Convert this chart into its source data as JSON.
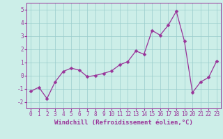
{
  "x": [
    0,
    1,
    2,
    3,
    4,
    5,
    6,
    7,
    8,
    9,
    10,
    11,
    12,
    13,
    14,
    15,
    16,
    17,
    18,
    19,
    20,
    21,
    22,
    23
  ],
  "y": [
    -1.2,
    -0.9,
    -1.75,
    -0.5,
    0.3,
    0.55,
    0.4,
    -0.1,
    0.0,
    0.15,
    0.35,
    0.8,
    1.05,
    1.85,
    1.6,
    3.4,
    3.05,
    3.8,
    4.85,
    2.6,
    -1.3,
    -0.5,
    -0.15,
    1.1
  ],
  "line_color": "#993399",
  "marker_color": "#993399",
  "bg_color": "#cceee8",
  "grid_color": "#99cccc",
  "xlabel": "Windchill (Refroidissement éolien,°C)",
  "xlim": [
    -0.5,
    23.5
  ],
  "ylim": [
    -2.5,
    5.5
  ],
  "yticks": [
    -2,
    -1,
    0,
    1,
    2,
    3,
    4,
    5
  ],
  "xticks": [
    0,
    1,
    2,
    3,
    4,
    5,
    6,
    7,
    8,
    9,
    10,
    11,
    12,
    13,
    14,
    15,
    16,
    17,
    18,
    19,
    20,
    21,
    22,
    23
  ],
  "tick_fontsize": 5.5,
  "xlabel_fontsize": 6.5,
  "marker_size": 2.5,
  "line_width": 0.9
}
